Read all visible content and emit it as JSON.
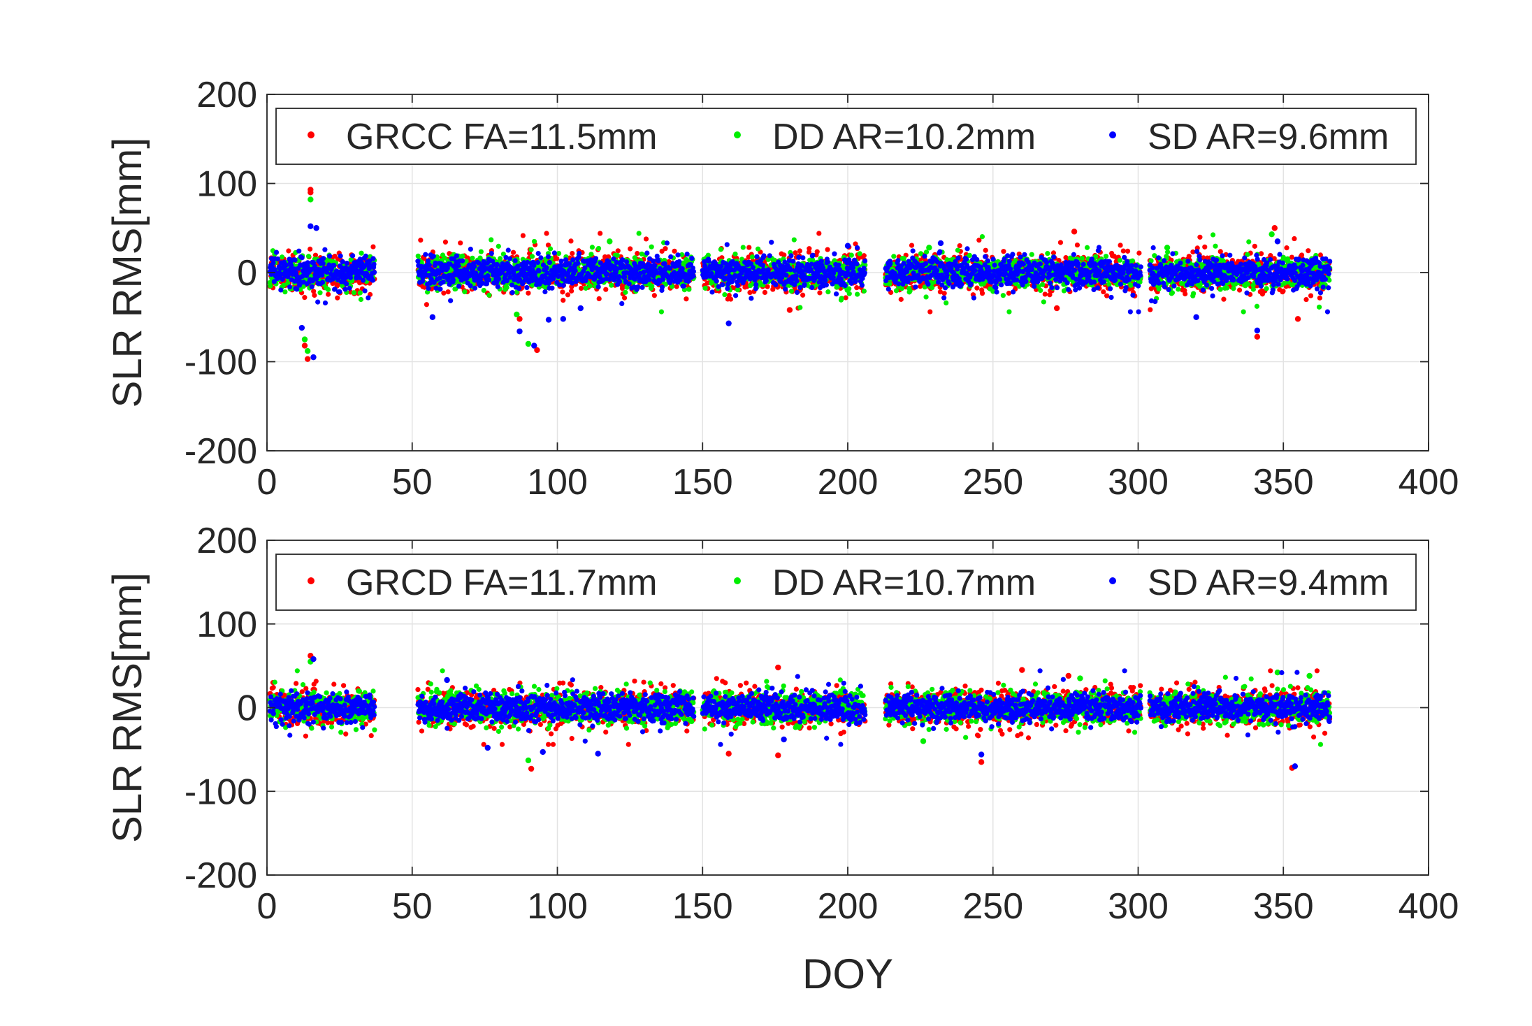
{
  "figure": {
    "colors": {
      "GRCC": "#ff0000",
      "DD": "#00ee00",
      "SD": "#0000ff",
      "axis": "#262626",
      "grid": "#e3e3e3"
    }
  },
  "chart_data": [
    {
      "type": "scatter",
      "panel": "top",
      "title": "",
      "xlabel": "",
      "ylabel": "SLR RMS[mm]",
      "xlim": [
        0,
        400
      ],
      "ylim": [
        -200,
        200
      ],
      "xticks": [
        "0",
        "50",
        "100",
        "150",
        "200",
        "250",
        "300",
        "350",
        "400"
      ],
      "yticks": [
        "200",
        "100",
        "0",
        "-100",
        "-200"
      ],
      "grid": true,
      "legend_position": "top",
      "observed_day_ranges": [
        [
          1,
          37
        ],
        [
          52,
          147
        ],
        [
          150,
          206
        ],
        [
          213,
          301
        ],
        [
          304,
          366
        ]
      ],
      "series": [
        {
          "name": "GRCC FA=11.5mm",
          "color": "#ff0000",
          "scatter_rms": 11.5,
          "outliers": [
            [
              15,
              93
            ],
            [
              15,
              90
            ],
            [
              14,
              -97
            ],
            [
              13,
              -82
            ],
            [
              93,
              -87
            ],
            [
              87,
              -52
            ],
            [
              278,
              46
            ],
            [
              341,
              -72
            ],
            [
              355,
              -52
            ],
            [
              347,
              50
            ],
            [
              180,
              -42
            ],
            [
              272,
              -40
            ]
          ]
        },
        {
          "name": "DD AR=10.2mm",
          "color": "#00ee00",
          "scatter_rms": 10.2,
          "outliers": [
            [
              15,
              82
            ],
            [
              14,
              -88
            ],
            [
              13,
              -75
            ],
            [
              90,
              -80
            ],
            [
              86,
              -47
            ],
            [
              346,
              43
            ],
            [
              118,
              35
            ],
            [
              228,
              28
            ],
            [
              310,
              28
            ]
          ]
        },
        {
          "name": "SD AR=9.6mm",
          "color": "#0000ff",
          "scatter_rms": 9.6,
          "outliers": [
            [
              15,
              52
            ],
            [
              17,
              50
            ],
            [
              12,
              -62
            ],
            [
              16,
              -95
            ],
            [
              92,
              -82
            ],
            [
              87,
              -66
            ],
            [
              97,
              -53
            ],
            [
              102,
              -52
            ],
            [
              108,
              -40
            ],
            [
              57,
              -50
            ],
            [
              320,
              -50
            ],
            [
              348,
              35
            ],
            [
              341,
              -65
            ],
            [
              159,
              -57
            ],
            [
              232,
              33
            ],
            [
              200,
              30
            ]
          ]
        }
      ]
    },
    {
      "type": "scatter",
      "panel": "bottom",
      "title": "",
      "xlabel": "DOY",
      "ylabel": "SLR RMS[mm]",
      "xlim": [
        0,
        400
      ],
      "ylim": [
        -200,
        200
      ],
      "xticks": [
        "0",
        "50",
        "100",
        "150",
        "200",
        "250",
        "300",
        "350",
        "400"
      ],
      "yticks": [
        "200",
        "100",
        "0",
        "-100",
        "-200"
      ],
      "grid": true,
      "legend_position": "top",
      "observed_day_ranges": [
        [
          1,
          37
        ],
        [
          52,
          147
        ],
        [
          150,
          206
        ],
        [
          213,
          301
        ],
        [
          304,
          366
        ]
      ],
      "series": [
        {
          "name": "GRCD FA=11.7mm",
          "color": "#ff0000",
          "scatter_rms": 11.7,
          "outliers": [
            [
              15,
              62
            ],
            [
              176,
              48
            ],
            [
              176,
              -57
            ],
            [
              91,
              -73
            ],
            [
              246,
              -65
            ],
            [
              159,
              -55
            ],
            [
              353,
              -72
            ],
            [
              260,
              45
            ],
            [
              276,
              38
            ]
          ]
        },
        {
          "name": "DD AR=10.7mm",
          "color": "#00ee00",
          "scatter_rms": 10.7,
          "outliers": [
            [
              15,
              55
            ],
            [
              90,
              -63
            ],
            [
              348,
              42
            ],
            [
              359,
              38
            ],
            [
              280,
              35
            ],
            [
              226,
              -40
            ]
          ]
        },
        {
          "name": "SD AR=9.4mm",
          "color": "#0000ff",
          "scatter_rms": 9.4,
          "outliers": [
            [
              16,
              58
            ],
            [
              95,
              -53
            ],
            [
              76,
              -48
            ],
            [
              114,
              -55
            ],
            [
              246,
              -56
            ],
            [
              354,
              -70
            ],
            [
              178,
              -38
            ],
            [
              62,
              33
            ]
          ]
        }
      ]
    }
  ]
}
